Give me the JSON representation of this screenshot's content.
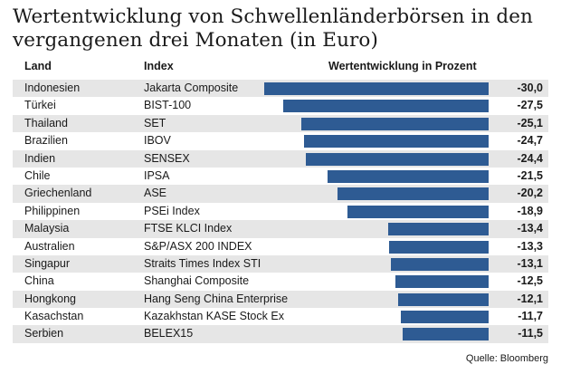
{
  "title": "Wertentwicklung von Schwellenländerbörsen in den vergangenen drei Monaten (in Euro)",
  "headers": {
    "land": "Land",
    "index": "Index",
    "value": "Wertentwicklung in Prozent"
  },
  "source": "Quelle: Bloomberg",
  "colors": {
    "bar": "#2e5b93",
    "shade": "#e6e6e6"
  },
  "chart_data": {
    "type": "bar",
    "orientation": "horizontal",
    "title": "Wertentwicklung von Schwellenländerbörsen in den vergangenen drei Monaten (in Euro)",
    "xlim": [
      -30,
      0
    ],
    "categories": [
      "Indonesien",
      "Türkei",
      "Thailand",
      "Brazilien",
      "Indien",
      "Chile",
      "Griechenland",
      "Philippinen",
      "Malaysia",
      "Australien",
      "Singapur",
      "China",
      "Hongkong",
      "Kasachstan",
      "Serbien"
    ],
    "rows": [
      {
        "land": "Indonesien",
        "index": "Jakarta Composite",
        "value": -30.0,
        "label": "-30,0"
      },
      {
        "land": "Türkei",
        "index": "BIST-100",
        "value": -27.5,
        "label": "-27,5"
      },
      {
        "land": "Thailand",
        "index": "SET",
        "value": -25.1,
        "label": "-25,1"
      },
      {
        "land": "Brazilien",
        "index": "IBOV",
        "value": -24.7,
        "label": "-24,7"
      },
      {
        "land": "Indien",
        "index": "SENSEX",
        "value": -24.4,
        "label": "-24,4"
      },
      {
        "land": "Chile",
        "index": "IPSA",
        "value": -21.5,
        "label": "-21,5"
      },
      {
        "land": "Griechenland",
        "index": "ASE",
        "value": -20.2,
        "label": "-20,2"
      },
      {
        "land": "Philippinen",
        "index": "PSEi Index",
        "value": -18.9,
        "label": "-18,9"
      },
      {
        "land": "Malaysia",
        "index": "FTSE  KLCI Index",
        "value": -13.4,
        "label": "-13,4"
      },
      {
        "land": "Australien",
        "index": "S&P/ASX 200 INDEX",
        "value": -13.3,
        "label": "-13,3"
      },
      {
        "land": "Singapur",
        "index": "Straits Times Index STI",
        "value": -13.1,
        "label": "-13,1"
      },
      {
        "land": "China",
        "index": "Shanghai Composite",
        "value": -12.5,
        "label": "-12,5"
      },
      {
        "land": "Hongkong",
        "index": "Hang Seng China Enterprise",
        "value": -12.1,
        "label": "-12,1"
      },
      {
        "land": "Kasachstan",
        "index": "Kazakhstan KASE Stock Ex",
        "value": -11.7,
        "label": "-11,7"
      },
      {
        "land": "Serbien",
        "index": "BELEX15",
        "value": -11.5,
        "label": "-11,5"
      }
    ]
  }
}
